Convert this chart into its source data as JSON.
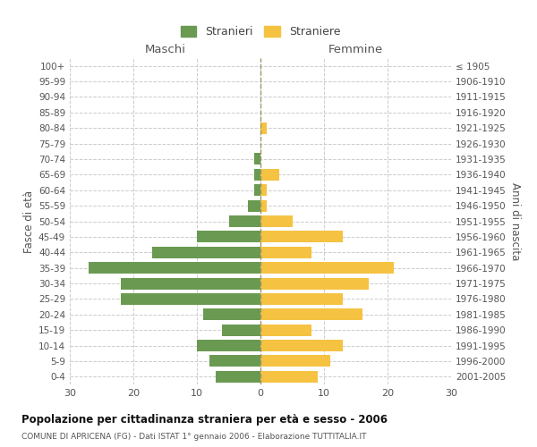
{
  "age_groups": [
    "0-4",
    "5-9",
    "10-14",
    "15-19",
    "20-24",
    "25-29",
    "30-34",
    "35-39",
    "40-44",
    "45-49",
    "50-54",
    "55-59",
    "60-64",
    "65-69",
    "70-74",
    "75-79",
    "80-84",
    "85-89",
    "90-94",
    "95-99",
    "100+"
  ],
  "birth_years": [
    "2001-2005",
    "1996-2000",
    "1991-1995",
    "1986-1990",
    "1981-1985",
    "1976-1980",
    "1971-1975",
    "1966-1970",
    "1961-1965",
    "1956-1960",
    "1951-1955",
    "1946-1950",
    "1941-1945",
    "1936-1940",
    "1931-1935",
    "1926-1930",
    "1921-1925",
    "1916-1920",
    "1911-1915",
    "1906-1910",
    "≤ 1905"
  ],
  "maschi": [
    7,
    8,
    10,
    6,
    9,
    22,
    22,
    27,
    17,
    10,
    5,
    2,
    1,
    1,
    1,
    0,
    0,
    0,
    0,
    0,
    0
  ],
  "femmine": [
    9,
    11,
    13,
    8,
    16,
    13,
    17,
    21,
    8,
    13,
    5,
    1,
    1,
    3,
    0,
    0,
    1,
    0,
    0,
    0,
    0
  ],
  "maschi_color": "#6a9a52",
  "femmine_color": "#f5c242",
  "background_color": "#ffffff",
  "grid_color": "#cccccc",
  "title": "Popolazione per cittadinanza straniera per età e sesso - 2006",
  "subtitle": "COMUNE DI APRICENA (FG) - Dati ISTAT 1° gennaio 2006 - Elaborazione TUTTITALIA.IT",
  "xlabel_left": "Maschi",
  "xlabel_right": "Femmine",
  "ylabel_left": "Fasce di età",
  "ylabel_right": "Anni di nascita",
  "legend_maschi": "Stranieri",
  "legend_femmine": "Straniere",
  "xlim": 30,
  "bar_height": 0.75
}
